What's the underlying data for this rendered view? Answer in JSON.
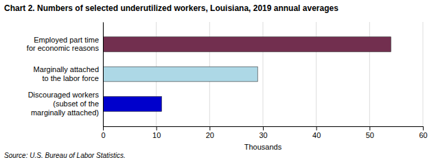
{
  "chart_data": {
    "type": "bar",
    "orientation": "horizontal",
    "title": "Chart 2. Numbers  of selected underutilized workers, Louisiana, 2019 annual averages",
    "categories": [
      "Discouraged workers\n(subset of the\nmarginally attached)",
      "Marginally attached\nto the labor force",
      "Employed part time\nfor economic reasons"
    ],
    "values": [
      11,
      29,
      54
    ],
    "colors": [
      "#0000cc",
      "#add8e6",
      "#722f4f"
    ],
    "xlim": [
      0,
      60
    ],
    "xticks": [
      0,
      10,
      20,
      30,
      40,
      50,
      60
    ],
    "xlabel": "Thousands",
    "source": "Source: U.S. Bureau of Labor Statistics.",
    "grid": true
  }
}
